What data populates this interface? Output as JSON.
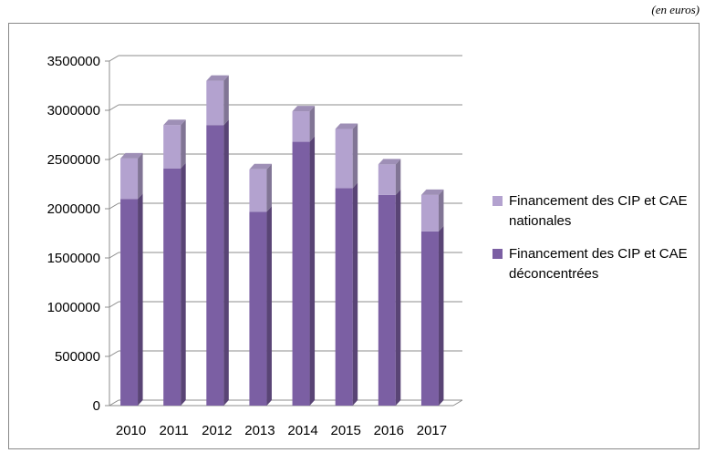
{
  "unit_note": "(en euros)",
  "chart_data": {
    "type": "bar",
    "stacked": true,
    "three_d": true,
    "categories": [
      "2010",
      "2011",
      "2012",
      "2013",
      "2014",
      "2015",
      "2016",
      "2017"
    ],
    "series": [
      {
        "name": "Financement des CIP et CAE déconcentrées",
        "values": [
          2100000,
          2410000,
          2850000,
          1970000,
          2680000,
          2210000,
          2140000,
          1770000
        ],
        "color": "#7b5fa3"
      },
      {
        "name": "Financement des CIP et CAE nationales",
        "values": [
          410000,
          440000,
          450000,
          430000,
          310000,
          600000,
          310000,
          370000
        ],
        "color": "#b3a2cf"
      }
    ],
    "y_ticks": [
      "0",
      "500000",
      "1000000",
      "1500000",
      "2000000",
      "2500000",
      "3000000",
      "3500000"
    ],
    "ylim": [
      0,
      3500000
    ],
    "grid": true,
    "legend_position": "right",
    "title": "",
    "xlabel": "",
    "ylabel": ""
  }
}
